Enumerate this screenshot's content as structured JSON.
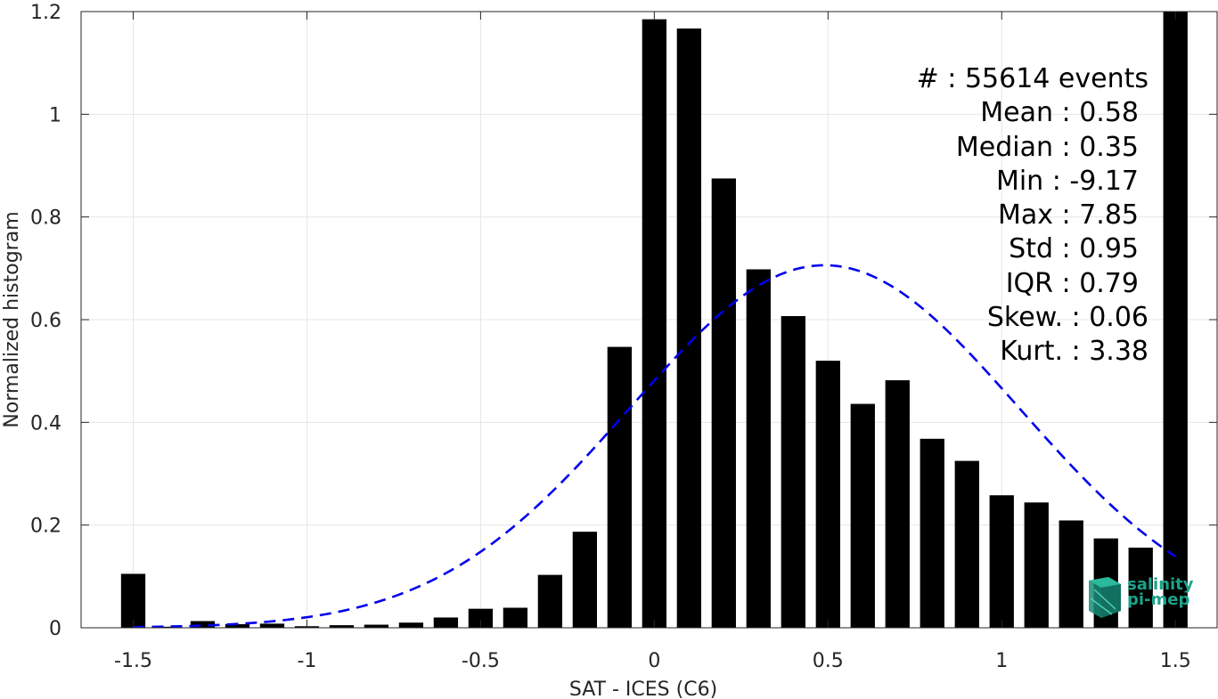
{
  "chart_data": {
    "type": "bar",
    "title": "",
    "xlabel": "SAT - ICES (C6)",
    "ylabel": "Normalized histogram",
    "xlim": [
      -1.65,
      1.62
    ],
    "ylim": [
      0,
      1.2
    ],
    "xticks": [
      "-1.5",
      "-1",
      "-0.5",
      "0",
      "0.5",
      "1",
      "1.5"
    ],
    "xtick_values": [
      -1.5,
      -1,
      -0.5,
      0,
      0.5,
      1,
      1.5
    ],
    "yticks": [
      "0",
      "0.2",
      "0.4",
      "0.6",
      "0.8",
      "1",
      "1.2"
    ],
    "ytick_values": [
      0,
      0.2,
      0.4,
      0.6,
      0.8,
      1.0,
      1.2
    ],
    "grid": true,
    "bar_width": 0.07,
    "bar_color": "#000000",
    "bars": {
      "x": [
        -1.5,
        -1.4,
        -1.3,
        -1.2,
        -1.1,
        -1.0,
        -0.9,
        -0.8,
        -0.7,
        -0.6,
        -0.5,
        -0.4,
        -0.3,
        -0.2,
        -0.1,
        0.0,
        0.1,
        0.2,
        0.3,
        0.4,
        0.5,
        0.6,
        0.7,
        0.8,
        0.9,
        1.0,
        1.1,
        1.2,
        1.3,
        1.4,
        1.5
      ],
      "values": [
        0.105,
        0.002,
        0.013,
        0.007,
        0.008,
        0.003,
        0.005,
        0.006,
        0.01,
        0.02,
        0.037,
        0.039,
        0.103,
        0.187,
        0.547,
        1.185,
        1.167,
        0.875,
        0.698,
        0.607,
        0.52,
        0.436,
        0.482,
        0.368,
        0.325,
        0.258,
        0.244,
        0.209,
        0.174,
        0.156,
        1.2
      ]
    },
    "fit_curve": {
      "name": "",
      "style": "dashed",
      "color": "#0000ee",
      "mean": 0.49,
      "std": 0.56,
      "peak": 0.706,
      "x_range": [
        -1.5,
        1.5
      ]
    },
    "stats": [
      "#  : 55614 events",
      "Mean : 0.58",
      "Median : 0.35",
      "Min : -9.17",
      "Max : 7.85",
      "Std : 0.95",
      "IQR : 0.79",
      "Skew. : 0.06",
      "Kurt. : 3.38"
    ]
  },
  "logo": {
    "line1": "salinity",
    "line2": "pi-mep",
    "color": "#1aa38a"
  }
}
